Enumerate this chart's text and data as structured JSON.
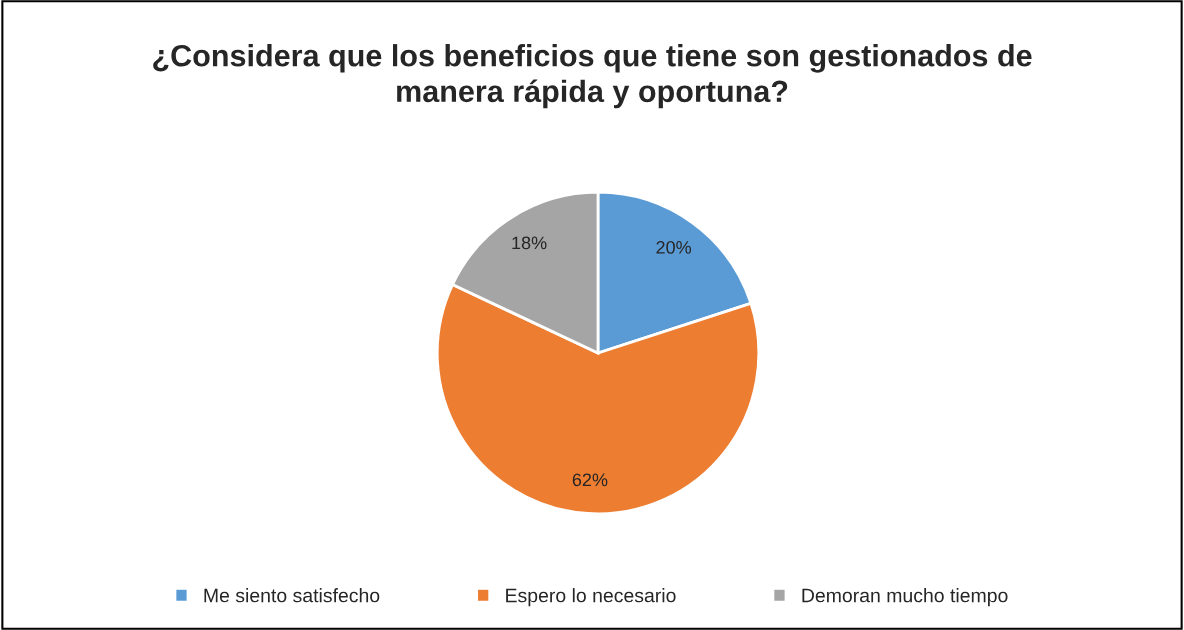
{
  "chart_data": {
    "type": "pie",
    "title": "¿Considera que los beneficios que tiene son gestionados de\nmanera rápida y oportuna?",
    "categories": [
      "Me siento satisfecho",
      "Espero lo necesario",
      "Demoran mucho tiempo"
    ],
    "values": [
      20,
      62,
      18
    ],
    "colors": [
      "#5b9bd5",
      "#ed7d31",
      "#a5a5a5"
    ],
    "value_labels": [
      "20%",
      "62%",
      "18%"
    ],
    "legend": "bottom"
  }
}
